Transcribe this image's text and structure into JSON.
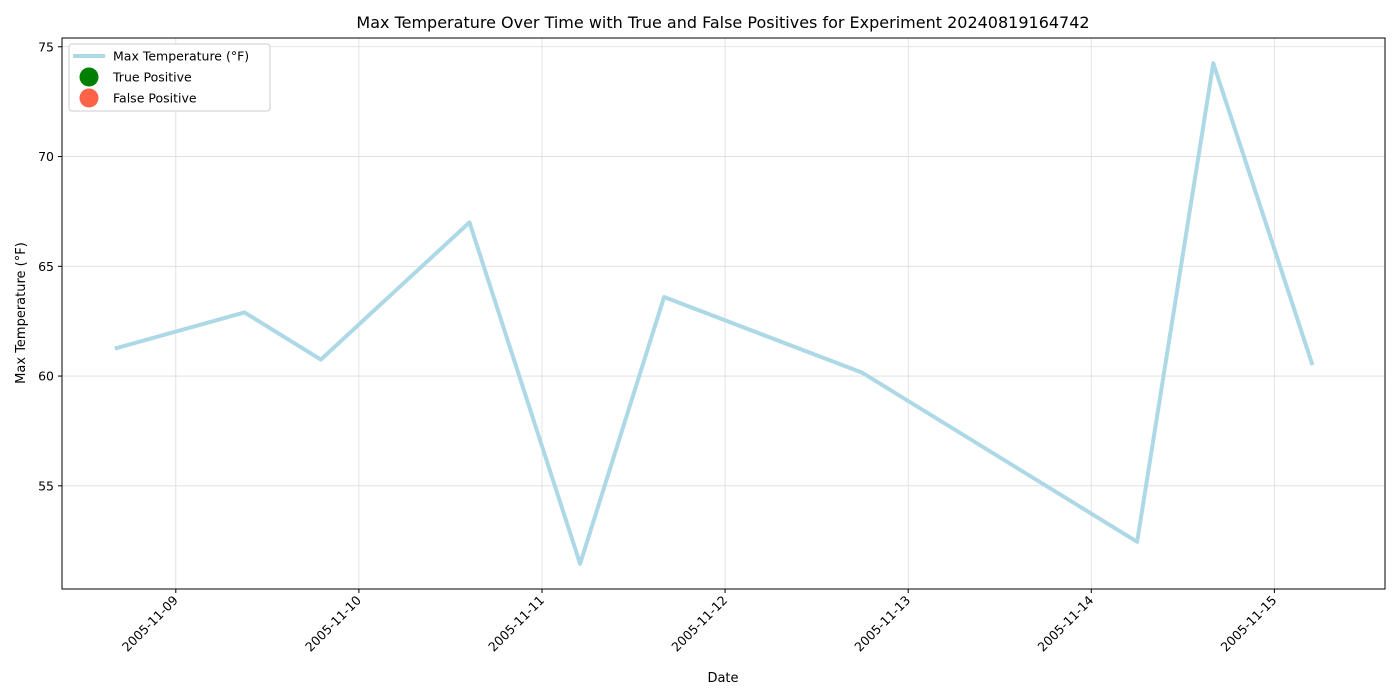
{
  "chart_data": {
    "type": "line",
    "title": "Max Temperature Over Time with True and False Positives for Experiment 20240819164742",
    "xlabel": "Date",
    "ylabel": "Max Temperature (°F)",
    "x_tick_labels": [
      "2005-11-09",
      "2005-11-10",
      "2005-11-11",
      "2005-11-12",
      "2005-11-13",
      "2005-11-14",
      "2005-11-15"
    ],
    "y_ticks": [
      55,
      60,
      65,
      70,
      75
    ],
    "xlim": [
      "2005-11-08 09:05",
      "2005-11-15 14:30"
    ],
    "ylim": [
      50.3,
      75.4
    ],
    "grid": true,
    "legend_placement": "top-left",
    "series": [
      {
        "name": "Max Temperature (°F)",
        "color": "#add8e6",
        "points": [
          {
            "x": "2005-11-08 16:00",
            "y": 61.25
          },
          {
            "x": "2005-11-09 09:00",
            "y": 62.9
          },
          {
            "x": "2005-11-09 19:00",
            "y": 60.75
          },
          {
            "x": "2005-11-10 14:30",
            "y": 67.0
          },
          {
            "x": "2005-11-11 05:00",
            "y": 51.45
          },
          {
            "x": "2005-11-11 16:00",
            "y": 63.6
          },
          {
            "x": "2005-11-12 18:00",
            "y": 60.15
          },
          {
            "x": "2005-11-14 06:00",
            "y": 52.45
          },
          {
            "x": "2005-11-14 16:00",
            "y": 74.25
          },
          {
            "x": "2005-11-15 05:00",
            "y": 60.5
          }
        ]
      }
    ],
    "legend_entries": [
      {
        "label": "Max Temperature (°F)",
        "kind": "line",
        "color": "#add8e6"
      },
      {
        "label": "True Positive",
        "kind": "marker",
        "color": "#008000"
      },
      {
        "label": "False Positive",
        "kind": "marker",
        "color": "#ff6347"
      }
    ]
  }
}
